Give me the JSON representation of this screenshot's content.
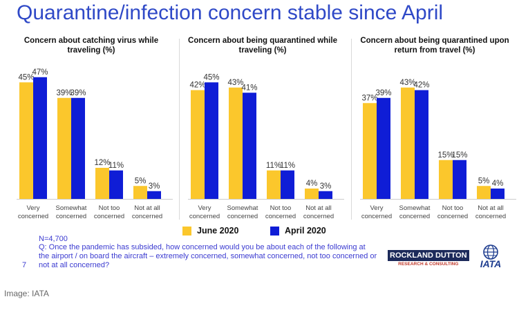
{
  "title": "Quarantine/infection concern stable since April",
  "colors": {
    "june": "#fbc72c",
    "april": "#0f1dd6",
    "title": "#2f49c7",
    "footnote": "#3a3ad0"
  },
  "legend": {
    "june_label": "June 2020",
    "april_label": "April 2020"
  },
  "footnote": {
    "n": "N=4,700",
    "question": "Q: Once the pandemic has subsided, how concerned would you be about each of the following at the airport / on board the aircraft – extremely concerned, somewhat concerned, not too concerned or not at all concerned?"
  },
  "page_number": "7",
  "logos": {
    "rockland_left": "ROCKLAND",
    "rockland_right": "DUTTON",
    "rockland_sub": "RESEARCH & CONSULTING",
    "iata": "IATA"
  },
  "caption": "Image: IATA",
  "chart_data": [
    {
      "type": "bar",
      "title": "Concern about catching virus while traveling (%)",
      "categories": [
        "Very concerned",
        "Somewhat concerned",
        "Not too concerned",
        "Not at all concerned"
      ],
      "series": [
        {
          "name": "June 2020",
          "values": [
            45,
            39,
            12,
            5
          ]
        },
        {
          "name": "April 2020",
          "values": [
            47,
            39,
            11,
            3
          ]
        }
      ],
      "ylim": [
        0,
        50
      ]
    },
    {
      "type": "bar",
      "title": "Concern about being quarantined while traveling (%)",
      "categories": [
        "Very concerned",
        "Somewhat concerned",
        "Not too concerned",
        "Not at all concerned"
      ],
      "series": [
        {
          "name": "June 2020",
          "values": [
            42,
            43,
            11,
            4
          ]
        },
        {
          "name": "April 2020",
          "values": [
            45,
            41,
            11,
            3
          ]
        }
      ],
      "ylim": [
        0,
        50
      ]
    },
    {
      "type": "bar",
      "title": "Concern about being quarantined upon return from travel (%)",
      "categories": [
        "Very concerned",
        "Somewhat concerned",
        "Not too concerned",
        "Not at all concerned"
      ],
      "series": [
        {
          "name": "June 2020",
          "values": [
            37,
            43,
            15,
            5
          ]
        },
        {
          "name": "April 2020",
          "values": [
            39,
            42,
            15,
            4
          ]
        }
      ],
      "ylim": [
        0,
        50
      ]
    }
  ]
}
